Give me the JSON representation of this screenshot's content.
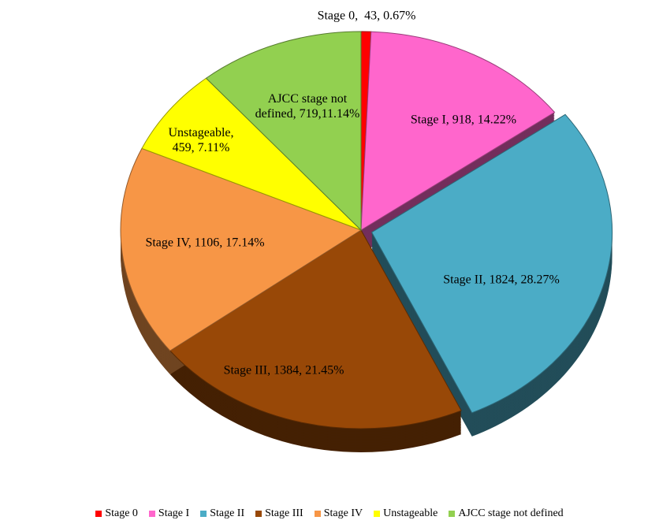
{
  "chart_data": {
    "type": "pie",
    "categories": [
      "Stage 0",
      "Stage I",
      "Stage II",
      "Stage III",
      "Stage IV",
      "Unstageable",
      "AJCC stage not defined"
    ],
    "values": [
      43,
      918,
      1824,
      1384,
      1106,
      459,
      719
    ],
    "value_labels": [
      "Stage 0,  43, 0.67%",
      "Stage I, 918, 14.22%",
      "Stage II, 1824, 28.27%",
      "Stage III, 1384, 21.45%",
      "Stage IV, 1106, 17.14%",
      "Unstageable, 459, 7.11%",
      "AJCC stage not defined, 719,11.14%"
    ],
    "colors": [
      "#ff0000",
      "#ff66cc",
      "#4bacc6",
      "#984807",
      "#f79646",
      "#ffff00",
      "#92d050"
    ],
    "legend": "bottom"
  }
}
